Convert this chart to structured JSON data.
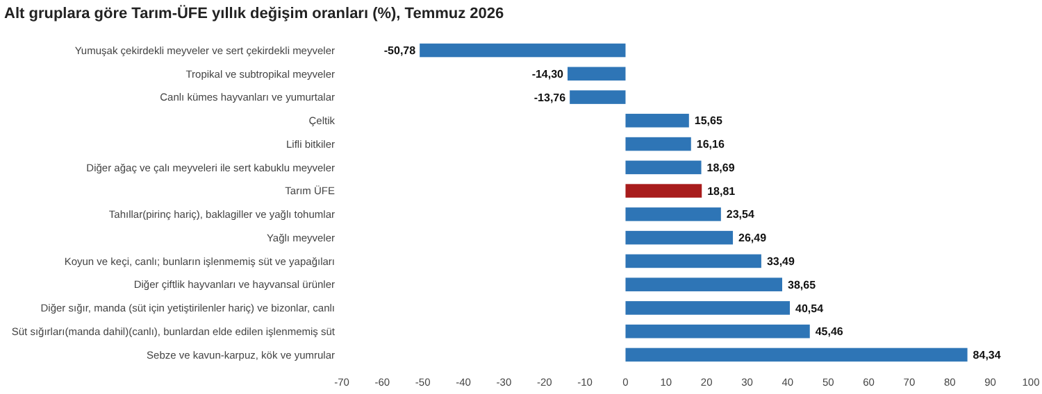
{
  "chart_data": {
    "type": "bar",
    "orientation": "horizontal",
    "title": "Alt gruplara göre Tarım-ÜFE yıllık değişim oranları (%), Temmuz 2026",
    "categories": [
      "Yumuşak çekirdekli meyveler ve sert çekirdekli meyveler",
      "Tropikal ve subtropikal meyveler",
      "Canlı kümes hayvanları ve yumurtalar",
      "Çeltik",
      "Lifli bitkiler",
      "Diğer ağaç ve çalı meyveleri ile sert kabuklu meyveler",
      "Tarım ÜFE",
      "Tahıllar(pirinç hariç), baklagiller ve yağlı tohumlar",
      "Yağlı meyveler",
      "Koyun ve keçi, canlı; bunların işlenmemiş süt ve yapağıları",
      "Diğer çiftlik hayvanları ve hayvansal ürünler",
      "Diğer sığır, manda (süt için yetiştirilenler hariç) ve bizonlar, canlı",
      "Süt sığırları(manda dahil)(canlı), bunlardan elde edilen işlenmemiş süt",
      "Sebze ve kavun-karpuz, kök ve yumrular"
    ],
    "values": [
      -50.78,
      -14.3,
      -13.76,
      15.65,
      16.16,
      18.69,
      18.81,
      23.54,
      26.49,
      33.49,
      38.65,
      40.54,
      45.46,
      84.34
    ],
    "value_labels": [
      "-50,78",
      "-14,30",
      "-13,76",
      "15,65",
      "16,16",
      "18,69",
      "18,81",
      "23,54",
      "26,49",
      "33,49",
      "38,65",
      "40,54",
      "45,46",
      "84,34"
    ],
    "colors": [
      "#2e75b6",
      "#2e75b6",
      "#2e75b6",
      "#2e75b6",
      "#2e75b6",
      "#2e75b6",
      "#a81c1c",
      "#2e75b6",
      "#2e75b6",
      "#2e75b6",
      "#2e75b6",
      "#2e75b6",
      "#2e75b6",
      "#2e75b6"
    ],
    "xlim": [
      -70,
      100
    ],
    "xticks": [
      -70,
      -60,
      -50,
      -40,
      -30,
      -20,
      -10,
      0,
      10,
      20,
      30,
      40,
      50,
      60,
      70,
      80,
      90,
      100
    ],
    "grid": false
  }
}
